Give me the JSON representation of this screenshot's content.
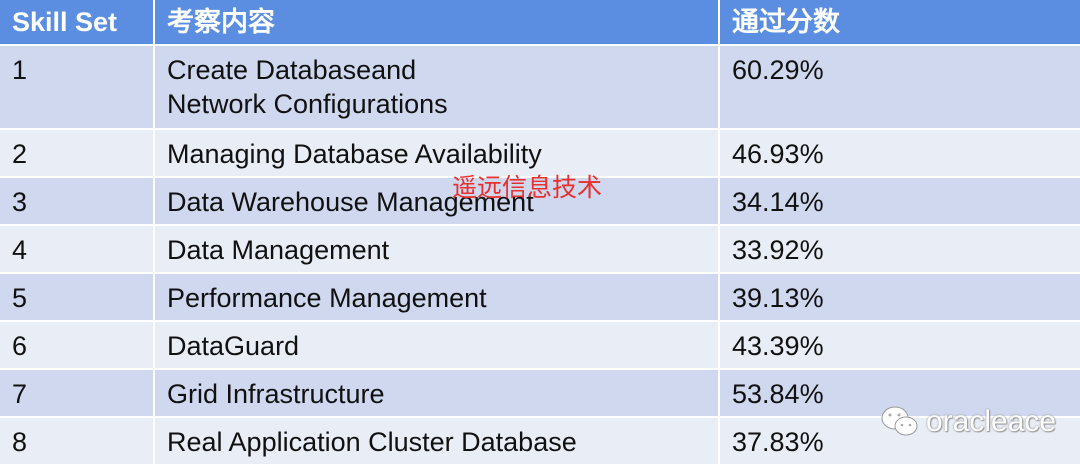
{
  "headers": [
    "Skill Set",
    "考察内容",
    "通过分数"
  ],
  "rows": [
    {
      "id": "1",
      "content_line1": "Create Databaseand",
      "content_line2": "Network Configurations",
      "score": "60.29%"
    },
    {
      "id": "2",
      "content": "Managing Database Availability",
      "score": "46.93%"
    },
    {
      "id": "3",
      "content": "Data Warehouse Management",
      "score": "34.14%"
    },
    {
      "id": "4",
      "content": "Data Management",
      "score": "33.92%"
    },
    {
      "id": "5",
      "content": "Performance Management",
      "score": "39.13%"
    },
    {
      "id": "6",
      "content": "DataGuard",
      "score": "43.39%"
    },
    {
      "id": "7",
      "content": "Grid Infrastructure",
      "score": "53.84%"
    },
    {
      "id": "8",
      "content": "Real Application Cluster Database",
      "score": "37.83%"
    }
  ],
  "watermarks": {
    "red_text": "遥远信息技术",
    "wechat_account": "oracleace",
    "wechat_icon": "wechat-icon"
  },
  "colors": {
    "header": "#5b8ee0",
    "row_odd": "#cfd8ee",
    "row_even": "#e9edf6",
    "watermark_red": "#e8302c"
  }
}
